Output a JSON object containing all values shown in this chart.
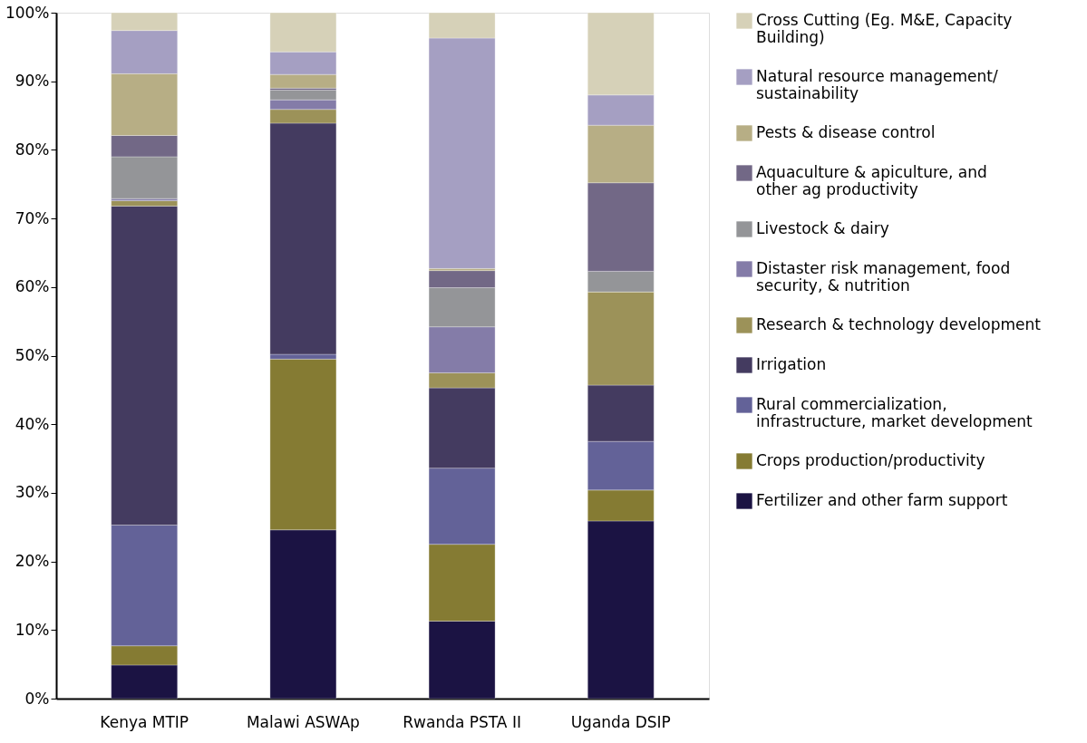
{
  "chart_data": {
    "type": "bar",
    "stacked": true,
    "categories": [
      "Kenya MTIP",
      "Malawi ASWAp",
      "Rwanda PSTA II",
      "Uganda DSIP"
    ],
    "ylim": [
      0,
      100
    ],
    "yticks": [
      {
        "value": 0,
        "label": "0%"
      },
      {
        "value": 10,
        "label": "10%"
      },
      {
        "value": 20,
        "label": "20%"
      },
      {
        "value": 30,
        "label": "30%"
      },
      {
        "value": 40,
        "label": "40%"
      },
      {
        "value": 50,
        "label": "50%"
      },
      {
        "value": 60,
        "label": "60%"
      },
      {
        "value": 70,
        "label": "70%"
      },
      {
        "value": 80,
        "label": "80%"
      },
      {
        "value": 90,
        "label": "90%"
      },
      {
        "value": 100,
        "label": "100%"
      }
    ],
    "grid": false,
    "legend": "right",
    "series": [
      {
        "name": "Fertilizer and other farm support",
        "color": "#1b1343",
        "values": [
          4.9,
          24.6,
          11.3,
          25.9
        ]
      },
      {
        "name": "Crops production/productivity",
        "color": "#857b33",
        "values": [
          2.8,
          24.9,
          11.2,
          4.5
        ]
      },
      {
        "name": "Rural commercialization, infrastructure, market development",
        "color": "#636298",
        "values": [
          17.6,
          0.7,
          11.1,
          7.1
        ]
      },
      {
        "name": "Irrigation",
        "color": "#443b60",
        "values": [
          46.5,
          33.7,
          11.7,
          8.2
        ]
      },
      {
        "name": "Research & technology development",
        "color": "#9c9259",
        "values": [
          0.8,
          2.0,
          2.2,
          13.6
        ]
      },
      {
        "name": "Distaster risk management, food security, & nutrition",
        "color": "#847ca8",
        "values": [
          0.3,
          1.4,
          6.7,
          0
        ]
      },
      {
        "name": "Livestock & dairy",
        "color": "#949598",
        "values": [
          6.1,
          1.4,
          5.7,
          3.0
        ]
      },
      {
        "name": "Aquaculture & apiculture,  and other ag productivity",
        "color": "#726886",
        "values": [
          3.1,
          0.3,
          2.5,
          12.9
        ]
      },
      {
        "name": "Pests & disease control",
        "color": "#b7ae85",
        "values": [
          9.0,
          2.0,
          0.3,
          8.4
        ]
      },
      {
        "name": "Natural resource management/ sustainability",
        "color": "#a59fc2",
        "values": [
          6.3,
          3.3,
          33.6,
          4.4
        ]
      },
      {
        "name": "Cross Cutting (Eg. M&E, Capacity Building)",
        "color": "#d6d1b8",
        "values": [
          2.6,
          5.7,
          3.7,
          12.0
        ]
      }
    ]
  }
}
